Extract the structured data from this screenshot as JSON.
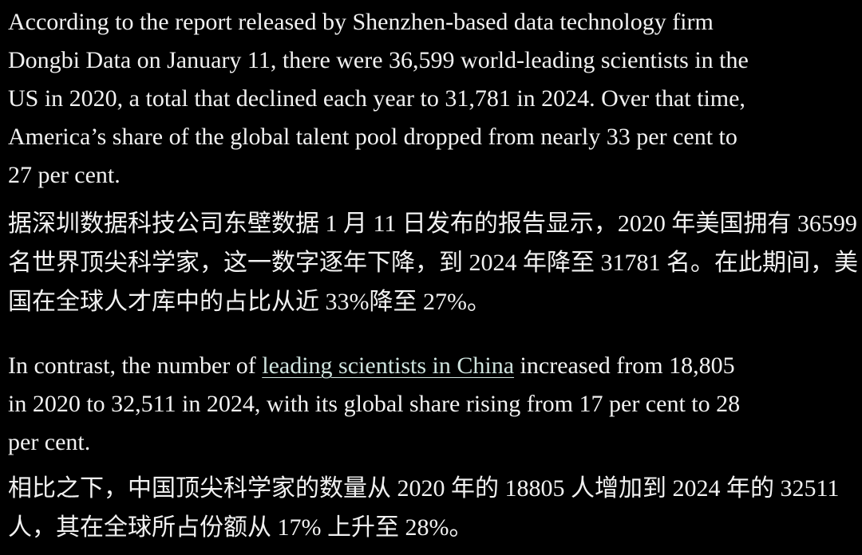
{
  "paragraphs": [
    {
      "lines": [
        "According to the report released by Shenzhen-based data technology firm",
        "Dongbi Data on January 11, there were 36,599 world-leading scientists in the",
        "US in 2020, a total that declined each year to 31,781 in 2024. Over that time,",
        "America’s share of the global talent pool dropped from nearly 33 per cent to",
        "27 per cent."
      ]
    },
    {
      "lines": [
        "据深圳数据科技公司东壁数据 1 月 11 日发布的报告显示，2020 年美国拥有 36599",
        "名世界顶尖科学家，这一数字逐年下降，到 2024 年降至 31781 名。在此期间，美",
        "国在全球人才库中的占比从近 33%降至 27%。"
      ]
    },
    {
      "lines": [
        {
          "text_before": "In contrast, the number of ",
          "link": "leading scientists in China",
          "text_after": " increased from 18,805"
        },
        "in 2020 to 32,511 in 2024, with its global share rising from 17 per cent to 28",
        "per cent."
      ]
    },
    {
      "lines": [
        "相比之下，中国顶尖科学家的数量从 2020 年的 18805 人增加到 2024 年的 32511",
        "人，其在全球所占份额从 17% 上升至 28%。"
      ]
    }
  ]
}
